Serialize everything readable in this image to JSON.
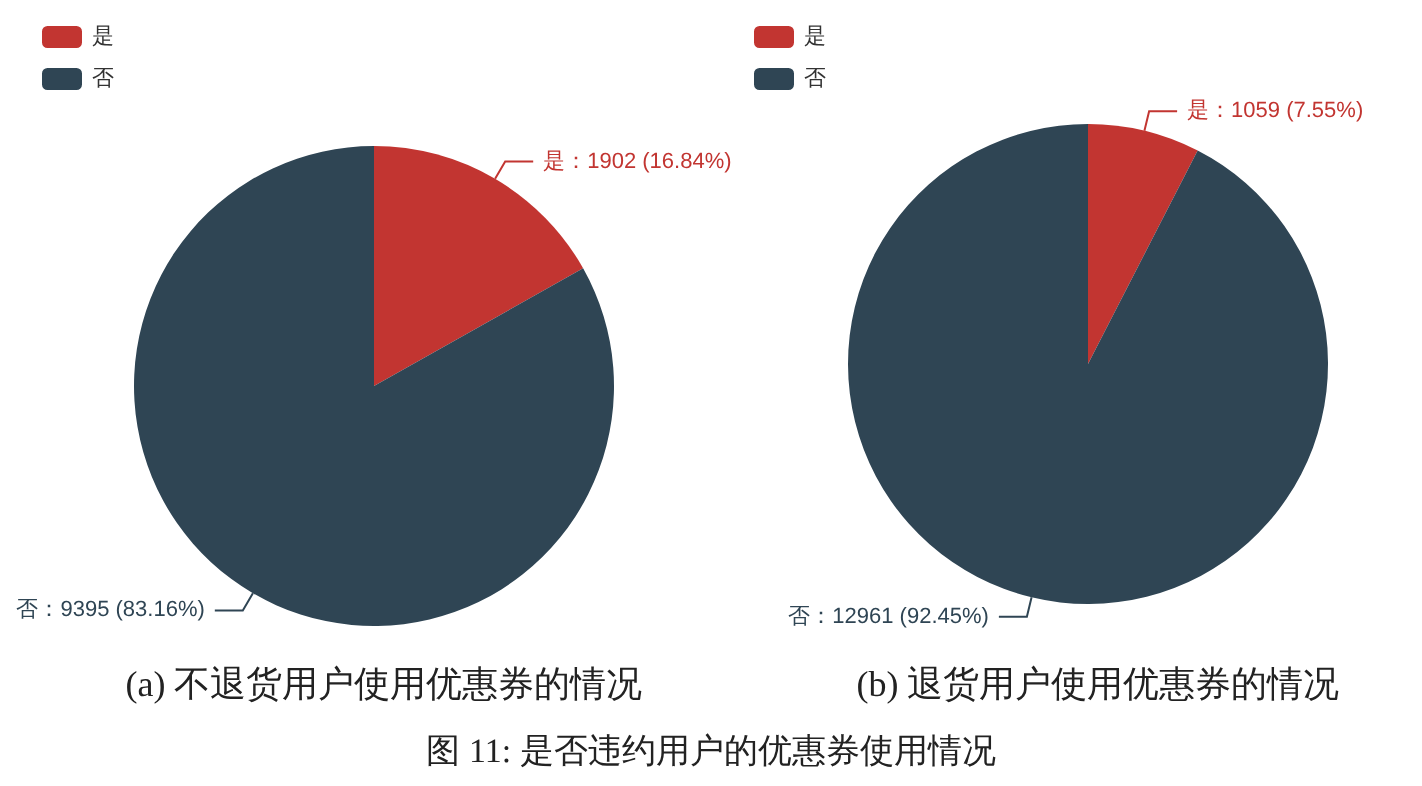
{
  "chart_data": [
    {
      "type": "pie",
      "title": "(a) 不退货用户使用优惠券的情况",
      "categories": [
        "是",
        "否"
      ],
      "values": [
        1902,
        9395
      ],
      "colors": [
        "#c23531",
        "#2f4554"
      ],
      "value_labels": [
        "是：1902 (16.84%)",
        "否：9395 (83.16%)"
      ],
      "legend": "top left"
    },
    {
      "type": "pie",
      "title": "(b) 退货用户使用优惠券的情况",
      "categories": [
        "是",
        "否"
      ],
      "values": [
        1059,
        12961
      ],
      "colors": [
        "#c23531",
        "#2f4554"
      ],
      "value_labels": [
        "是：1059 (7.55%)",
        "否：12961 (92.45%)"
      ],
      "legend": "top left",
      "annotations": [
        "图 11: 是否违约用户的优惠券使用情况"
      ]
    }
  ]
}
